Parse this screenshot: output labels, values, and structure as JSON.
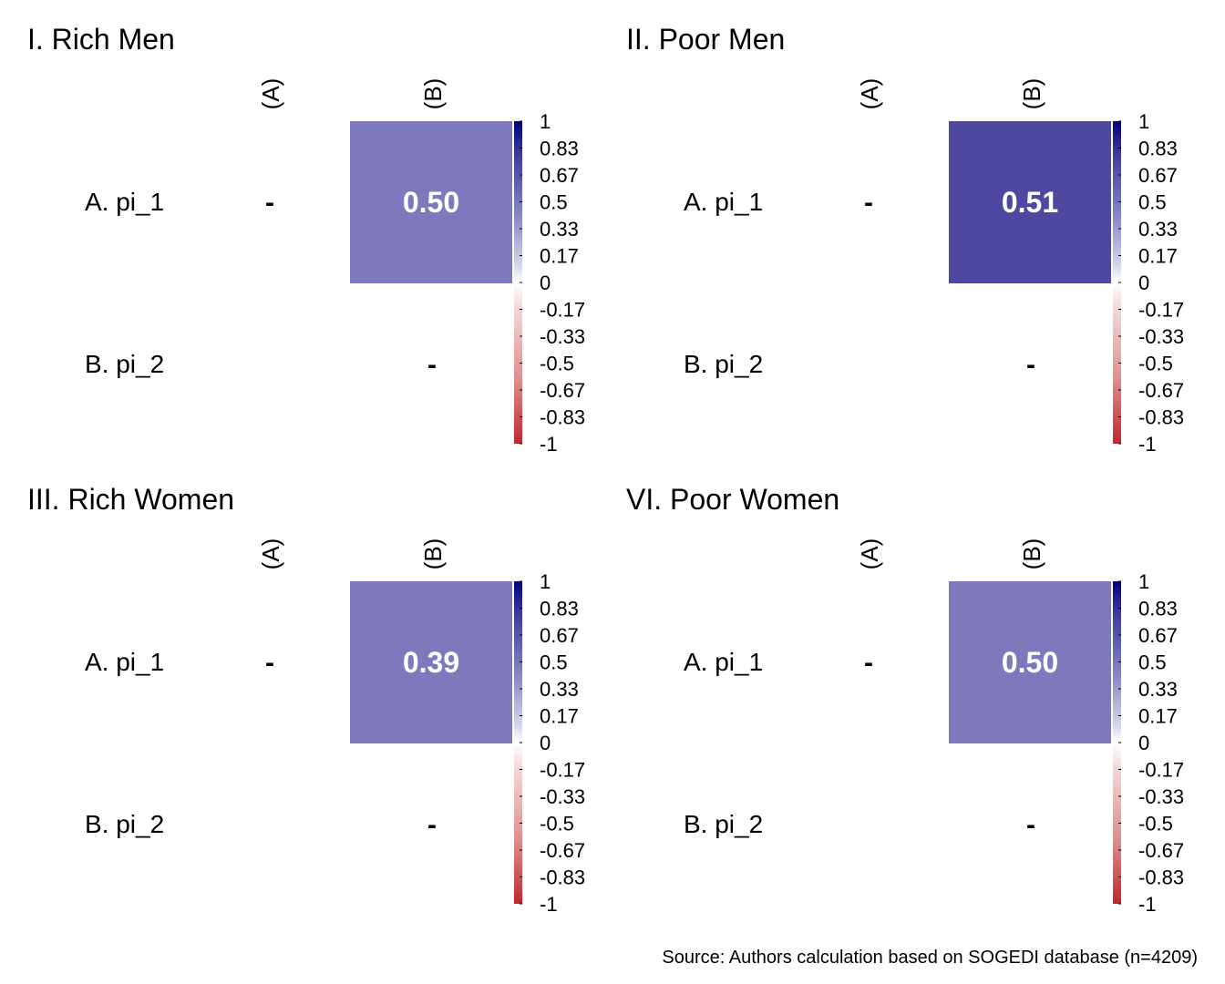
{
  "chart_data": [
    {
      "type": "heatmap",
      "title": "I. Rich Men",
      "columns": [
        "(A)",
        "(B)"
      ],
      "rows": [
        "A. pi_1",
        "B. pi_2"
      ],
      "matrix": [
        [
          null,
          0.5
        ],
        [
          null,
          null
        ]
      ],
      "value_labels": [
        [
          "-",
          "0.50"
        ],
        [
          "",
          "-"
        ]
      ],
      "color_range": [
        -1,
        1
      ],
      "colorbar_ticks": [
        "1",
        "0.83",
        "0.67",
        "0.5",
        "0.33",
        "0.17",
        "0",
        "-0.17",
        "-0.33",
        "-0.5",
        "-0.67",
        "-0.83",
        "-1"
      ]
    },
    {
      "type": "heatmap",
      "title": "II. Poor Men",
      "columns": [
        "(A)",
        "(B)"
      ],
      "rows": [
        "A. pi_1",
        "B. pi_2"
      ],
      "matrix": [
        [
          null,
          0.51
        ],
        [
          null,
          null
        ]
      ],
      "value_labels": [
        [
          "-",
          "0.51"
        ],
        [
          "",
          "-"
        ]
      ],
      "color_range": [
        -1,
        1
      ],
      "colorbar_ticks": [
        "1",
        "0.83",
        "0.67",
        "0.5",
        "0.33",
        "0.17",
        "0",
        "-0.17",
        "-0.33",
        "-0.5",
        "-0.67",
        "-0.83",
        "-1"
      ]
    },
    {
      "type": "heatmap",
      "title": "III. Rich Women",
      "columns": [
        "(A)",
        "(B)"
      ],
      "rows": [
        "A. pi_1",
        "B. pi_2"
      ],
      "matrix": [
        [
          null,
          0.39
        ],
        [
          null,
          null
        ]
      ],
      "value_labels": [
        [
          "-",
          "0.39"
        ],
        [
          "",
          "-"
        ]
      ],
      "color_range": [
        -1,
        1
      ],
      "colorbar_ticks": [
        "1",
        "0.83",
        "0.67",
        "0.5",
        "0.33",
        "0.17",
        "0",
        "-0.17",
        "-0.33",
        "-0.5",
        "-0.67",
        "-0.83",
        "-1"
      ]
    },
    {
      "type": "heatmap",
      "title": "VI. Poor Women",
      "columns": [
        "(A)",
        "(B)"
      ],
      "rows": [
        "A. pi_1",
        "B. pi_2"
      ],
      "matrix": [
        [
          null,
          0.5
        ],
        [
          null,
          null
        ]
      ],
      "value_labels": [
        [
          "-",
          "0.50"
        ],
        [
          "",
          "-"
        ]
      ],
      "color_range": [
        -1,
        1
      ],
      "colorbar_ticks": [
        "1",
        "0.83",
        "0.67",
        "0.5",
        "0.33",
        "0.17",
        "0",
        "-0.17",
        "-0.33",
        "-0.5",
        "-0.67",
        "-0.83",
        "-1"
      ]
    }
  ],
  "colors": {
    "positive_end": "#00007F",
    "negative_end": "#C0272D",
    "neutral": "#FFFFFF",
    "cell_label": "#FFFFFF",
    "text": "#000000"
  },
  "footer": {
    "source": "Source: Authors calculation based on SOGEDI database (n=4209)"
  }
}
